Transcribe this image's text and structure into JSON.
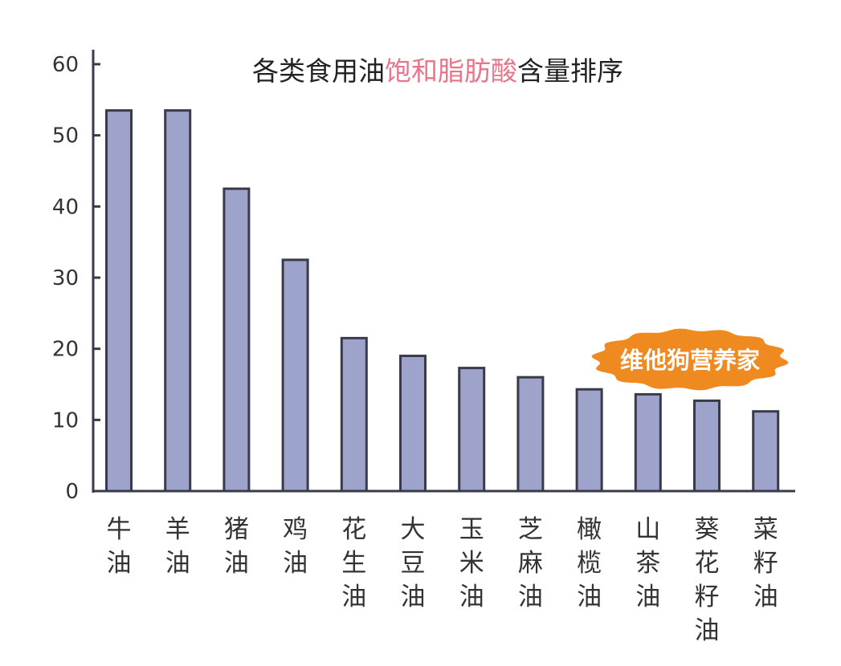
{
  "chart_data": {
    "type": "bar",
    "title_parts": [
      {
        "text": "各类食用油",
        "color": "#222222"
      },
      {
        "text": "饱和脂肪酸",
        "color": "#e8758a"
      },
      {
        "text": "含量排序",
        "color": "#222222"
      }
    ],
    "categories": [
      "牛油",
      "羊油",
      "猪油",
      "鸡油",
      "花生油",
      "大豆油",
      "玉米油",
      "芝麻油",
      "橄榄油",
      "山茶油",
      "葵花籽油",
      "菜籽油"
    ],
    "values": [
      53.5,
      53.5,
      42.5,
      32.5,
      21.5,
      19,
      17.3,
      16,
      14.3,
      13.6,
      12.7,
      11.2
    ],
    "ylim": [
      0,
      60
    ],
    "yticks": [
      0,
      10,
      20,
      30,
      40,
      50,
      60
    ],
    "xlabel": "",
    "ylabel": "",
    "grid": false,
    "legend": "none"
  },
  "watermark": {
    "text": "维他狗营养家"
  },
  "colors": {
    "bar_fill": "#9da3cb",
    "bar_stroke": "#3a3a4a",
    "axis": "#3a3a4a",
    "badge": "#ef8a21"
  }
}
